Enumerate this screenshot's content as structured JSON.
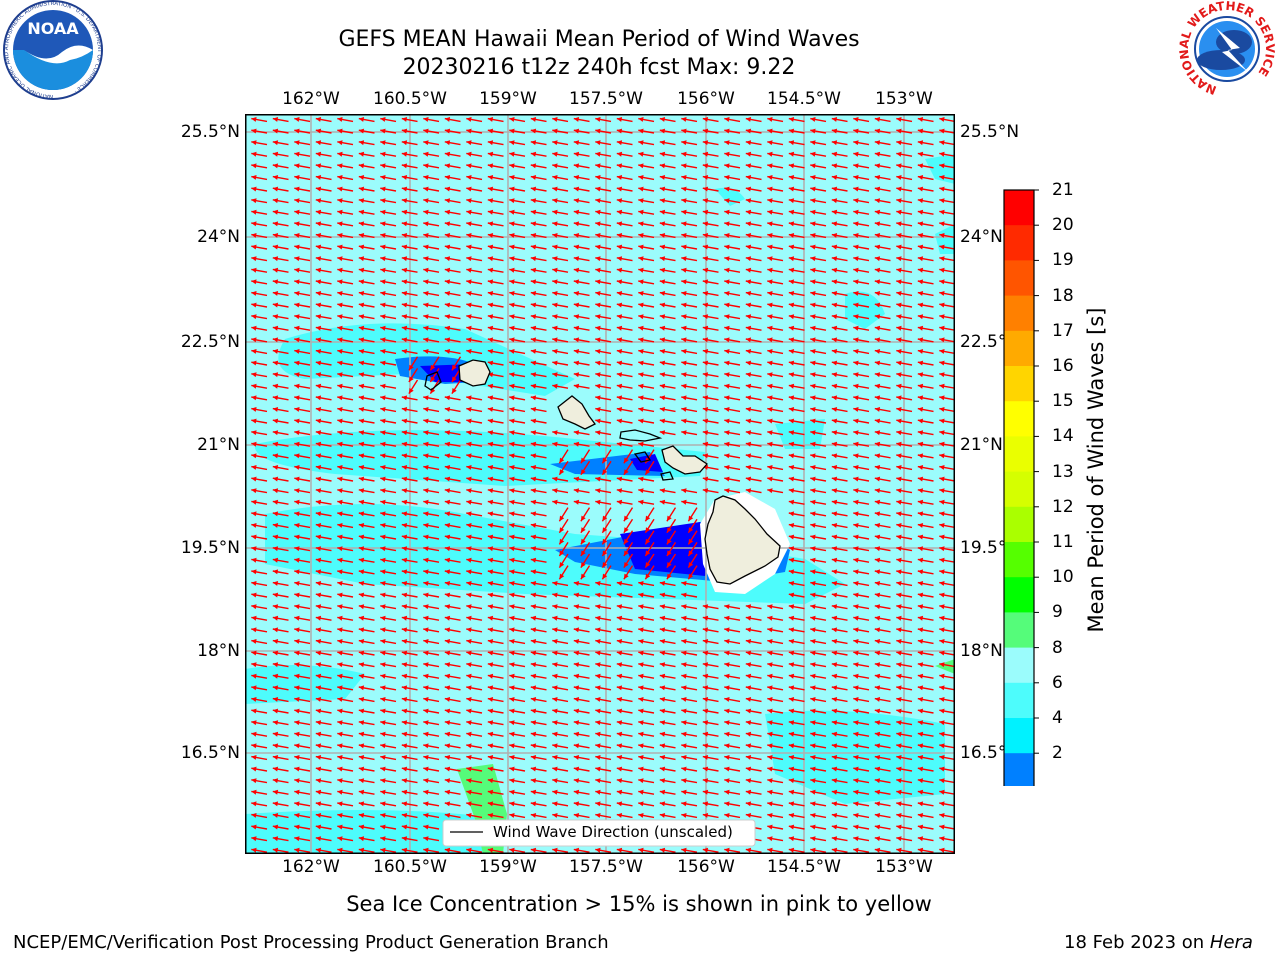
{
  "title": {
    "line1": "GEFS MEAN Hawaii Mean Period of Wind Waves",
    "line2": "20230216 t12z 240h fcst   Max: 9.22"
  },
  "logos": {
    "noaa": "NOAA",
    "noaa_ring": "NATIONAL OCEANIC AND ATMOSPHERIC ADMINISTRATION · U.S. DEPARTMENT OF COMMERCE ·",
    "nws_ring": "NATIONAL WEATHER SERVICE"
  },
  "map": {
    "lon_ticks": [
      "162°W",
      "160.5°W",
      "159°W",
      "157.5°W",
      "156°W",
      "154.5°W",
      "153°W"
    ],
    "lat_ticks": [
      "25.5°N",
      "24°N",
      "22.5°N",
      "21°N",
      "19.5°N",
      "18°N",
      "16.5°N"
    ],
    "right_lat_ticks": [
      "25.5°N",
      "24°N",
      "22.5°",
      "21°N",
      "19.5°",
      "18°N",
      "16.5°"
    ],
    "legend_label": "Wind Wave Direction (unscaled)",
    "ocean_color": "#9bfcfc",
    "arrow_color": "#ff0000",
    "land_color": "#efeedd"
  },
  "colorbar": {
    "label": "Mean Period of Wind Waves [s]",
    "ticks": [
      "21",
      "20",
      "19",
      "18",
      "17",
      "16",
      "15",
      "14",
      "13",
      "12",
      "11",
      "10",
      "9",
      "8",
      "6",
      "4",
      "2"
    ],
    "colors": [
      "#ff0000",
      "#ff2a00",
      "#ff5500",
      "#ff8000",
      "#ffaa00",
      "#ffd500",
      "#ffff00",
      "#eaff00",
      "#d5ff00",
      "#aaff00",
      "#55ff00",
      "#00ff00",
      "#55fc7a",
      "#9bfcfc",
      "#4dfcfc",
      "#00f2ff",
      "#0080ff"
    ],
    "under_color": "#0000ff"
  },
  "note": "Sea Ice Concentration > 15% is shown in pink to yellow",
  "footer": {
    "left": "NCEP/EMC/Verification Post Processing Product Generation Branch",
    "date": "18 Feb 2023 on",
    "machine": "Hera"
  }
}
